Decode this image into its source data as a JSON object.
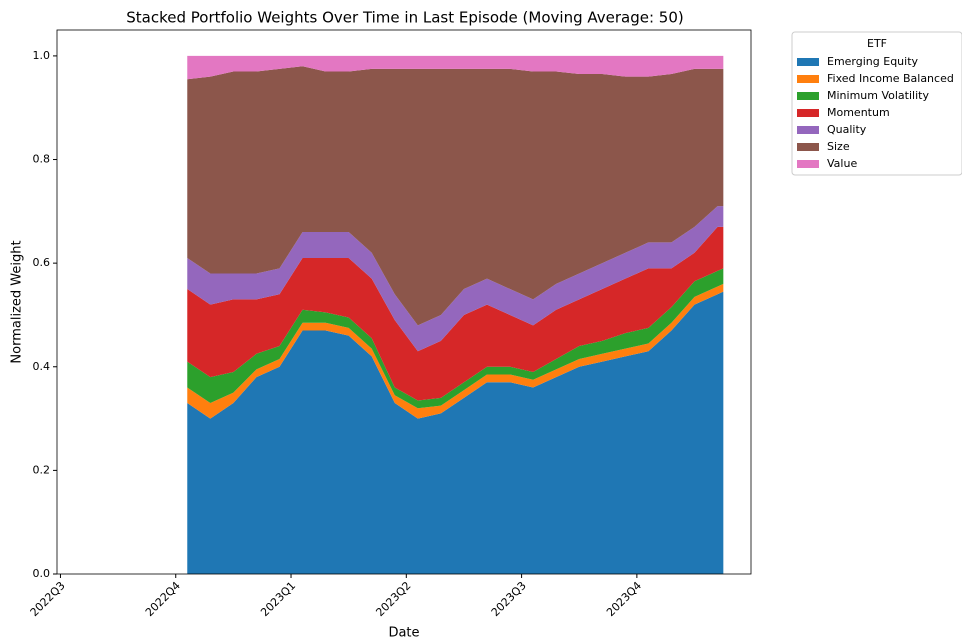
{
  "chart_data": {
    "type": "stacked_area",
    "title": "Stacked Portfolio Weights Over Time in Last Episode (Moving Average: 50)",
    "x_label": "Date",
    "y_label": "Normalized Weight",
    "x": [
      1.1,
      1.3,
      1.5,
      1.7,
      1.9,
      2.1,
      2.3,
      2.5,
      2.7,
      2.9,
      3.1,
      3.3,
      3.5,
      3.7,
      3.9,
      4.1,
      4.3,
      4.5,
      4.7,
      4.9,
      5.1,
      5.3,
      5.5,
      5.7,
      5.75
    ],
    "series": [
      {
        "name": "Emerging Equity",
        "color": "#1f77b4",
        "values": [
          0.33,
          0.3,
          0.33,
          0.38,
          0.4,
          0.47,
          0.47,
          0.46,
          0.42,
          0.33,
          0.3,
          0.31,
          0.34,
          0.37,
          0.37,
          0.36,
          0.38,
          0.4,
          0.41,
          0.42,
          0.43,
          0.47,
          0.52,
          0.54,
          0.545
        ]
      },
      {
        "name": "Fixed Income Balanced",
        "color": "#ff7f0e",
        "values": [
          0.03,
          0.03,
          0.02,
          0.015,
          0.015,
          0.015,
          0.015,
          0.015,
          0.015,
          0.015,
          0.02,
          0.015,
          0.015,
          0.015,
          0.015,
          0.015,
          0.015,
          0.015,
          0.015,
          0.015,
          0.015,
          0.015,
          0.015,
          0.015,
          0.015
        ]
      },
      {
        "name": "Minimum Volatility",
        "color": "#2ca02c",
        "values": [
          0.05,
          0.05,
          0.04,
          0.03,
          0.025,
          0.025,
          0.02,
          0.02,
          0.02,
          0.015,
          0.015,
          0.015,
          0.015,
          0.015,
          0.015,
          0.015,
          0.02,
          0.025,
          0.025,
          0.03,
          0.03,
          0.03,
          0.03,
          0.03,
          0.03
        ]
      },
      {
        "name": "Momentum",
        "color": "#d62728",
        "values": [
          0.14,
          0.14,
          0.14,
          0.105,
          0.1,
          0.1,
          0.105,
          0.115,
          0.115,
          0.13,
          0.095,
          0.11,
          0.13,
          0.12,
          0.1,
          0.09,
          0.095,
          0.09,
          0.1,
          0.105,
          0.115,
          0.075,
          0.055,
          0.085,
          0.08
        ]
      },
      {
        "name": "Quality",
        "color": "#9467bd",
        "values": [
          0.06,
          0.06,
          0.05,
          0.05,
          0.05,
          0.05,
          0.05,
          0.05,
          0.05,
          0.05,
          0.05,
          0.05,
          0.05,
          0.05,
          0.05,
          0.05,
          0.05,
          0.05,
          0.05,
          0.05,
          0.05,
          0.05,
          0.05,
          0.04,
          0.04
        ]
      },
      {
        "name": "Size",
        "color": "#8c564b",
        "values": [
          0.345,
          0.38,
          0.39,
          0.39,
          0.385,
          0.32,
          0.31,
          0.31,
          0.355,
          0.435,
          0.495,
          0.475,
          0.425,
          0.405,
          0.425,
          0.44,
          0.41,
          0.385,
          0.365,
          0.34,
          0.32,
          0.325,
          0.305,
          0.265,
          0.265
        ]
      },
      {
        "name": "Value",
        "color": "#e377c2",
        "values": [
          0.045,
          0.04,
          0.03,
          0.03,
          0.025,
          0.02,
          0.03,
          0.03,
          0.025,
          0.025,
          0.025,
          0.025,
          0.025,
          0.025,
          0.025,
          0.03,
          0.03,
          0.035,
          0.035,
          0.04,
          0.04,
          0.035,
          0.025,
          0.025,
          0.025
        ]
      }
    ],
    "xlim": [
      -0.03,
      5.99
    ],
    "xticks": [
      {
        "value": 0,
        "label": "2022Q3"
      },
      {
        "value": 1,
        "label": "2022Q4"
      },
      {
        "value": 2,
        "label": "2023Q1"
      },
      {
        "value": 3,
        "label": "2023Q2"
      },
      {
        "value": 4,
        "label": "2023Q3"
      },
      {
        "value": 5,
        "label": "2023Q4"
      }
    ],
    "ylim": [
      0,
      1.05
    ],
    "yticks": [
      {
        "value": 0,
        "label": "0.0"
      },
      {
        "value": 0.2,
        "label": "0.2"
      },
      {
        "value": 0.4,
        "label": "0.4"
      },
      {
        "value": 0.6,
        "label": "0.6"
      },
      {
        "value": 0.8,
        "label": "0.8"
      },
      {
        "value": 1,
        "label": "1.0"
      }
    ],
    "legend_title": "ETF",
    "legend_position": "outside-upper-right",
    "grid": false
  }
}
